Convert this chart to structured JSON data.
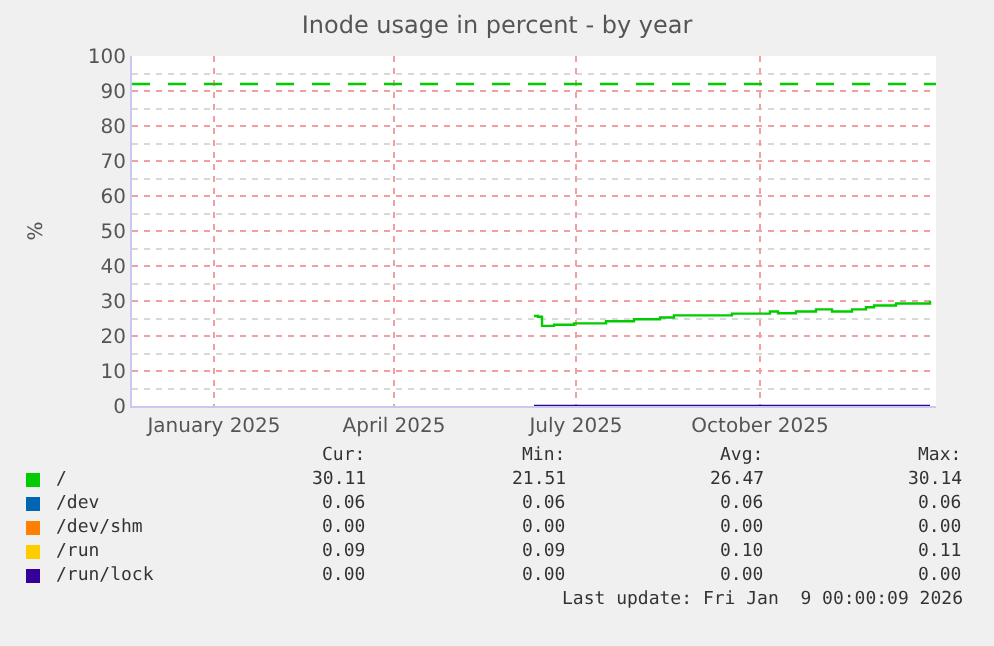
{
  "chart_data": {
    "type": "step",
    "title": "Inode usage in percent - by year",
    "ylabel": "%",
    "x": [
      "2025-06-25",
      "2025-06-27",
      "2025-06-29",
      "2025-07-05",
      "2025-07-15",
      "2025-07-31",
      "2025-08-14",
      "2025-08-27",
      "2025-09-03",
      "2025-10-02",
      "2025-10-21",
      "2025-10-25",
      "2025-11-03",
      "2025-11-13",
      "2025-11-21",
      "2025-12-01",
      "2025-12-08",
      "2025-12-12",
      "2025-12-23",
      "2026-01-09"
    ],
    "series": [
      {
        "name": "/",
        "color": "#00cc00",
        "values": [
          25.7,
          25.5,
          22.9,
          23.2,
          23.6,
          24.2,
          24.8,
          25.3,
          25.9,
          26.4,
          27.0,
          26.5,
          27.0,
          27.6,
          27.0,
          27.6,
          28.2,
          28.7,
          29.3,
          30.1
        ]
      },
      {
        "name": "/dev",
        "color": "#0066b3",
        "values": [
          null,
          null,
          null,
          null,
          null,
          null,
          null,
          null,
          null,
          null,
          null,
          null,
          null,
          null,
          null,
          null,
          null,
          null,
          null,
          null
        ]
      },
      {
        "name": "/dev/shm",
        "color": "#ff8000",
        "values": [
          null,
          null,
          null,
          null,
          null,
          null,
          null,
          null,
          null,
          null,
          null,
          null,
          null,
          null,
          null,
          null,
          null,
          null,
          null,
          null
        ]
      },
      {
        "name": "/run",
        "color": "#ffcc00",
        "values": [
          null,
          null,
          null,
          null,
          null,
          null,
          null,
          null,
          null,
          null,
          null,
          null,
          null,
          null,
          null,
          null,
          null,
          null,
          null,
          null
        ]
      },
      {
        "name": "/run/lock",
        "color": "#330099",
        "x": [
          "2025-06-25",
          "2026-01-09"
        ],
        "values": [
          0.0,
          0.0
        ]
      }
    ],
    "xlim": [
      "2024-12-06",
      "2026-01-12"
    ],
    "xticks": [
      {
        "value": "2025-01-16",
        "label": "January 2025"
      },
      {
        "value": "2025-04-16",
        "label": "April 2025"
      },
      {
        "value": "2025-07-16",
        "label": "July 2025"
      },
      {
        "value": "2025-10-16",
        "label": "October 2025"
      }
    ],
    "ylim": [
      0,
      100
    ],
    "yticks": [
      0,
      10,
      20,
      30,
      40,
      50,
      60,
      70,
      80,
      90,
      100
    ],
    "ref_lines": [
      {
        "axis": "y",
        "value": 92,
        "color": "#00cc00",
        "line_style": "dashed"
      }
    ],
    "grid": true,
    "legend": "bottom left",
    "annotations": [
      "Cur:",
      "Min:",
      "Avg:",
      "Max:",
      "30.11",
      "21.51",
      "26.47",
      "30.14",
      "0.06",
      "0.06",
      "0.06",
      "0.06",
      "0.00",
      "0.00",
      "0.00",
      "0.00",
      "0.09",
      "0.09",
      "0.10",
      "0.11",
      "0.00",
      "0.00",
      "0.00",
      "0.00",
      "Last update: Fri Jan  9 00:00:09 2026"
    ]
  }
}
